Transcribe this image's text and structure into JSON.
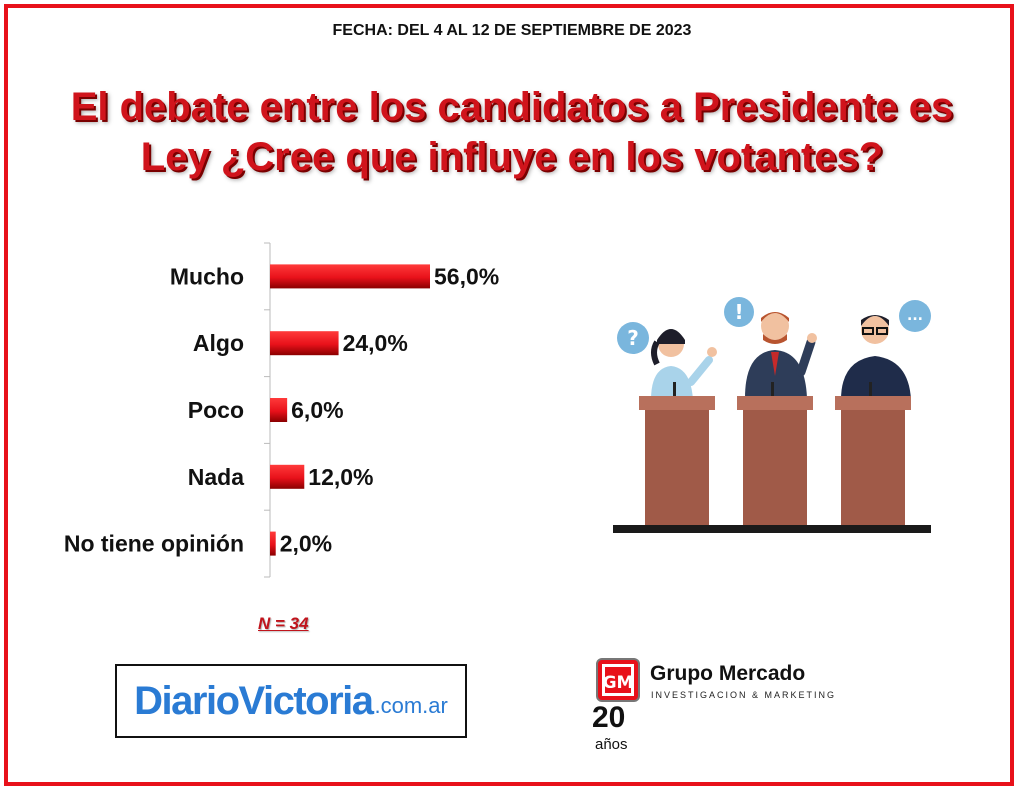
{
  "header": {
    "date": "FECHA: DEL 4 AL 12 DE SEPTIEMBRE DE 2023",
    "title_line1": "El debate entre los candidatos a Presidente es",
    "title_line2": "Ley ¿Cree que influye en los votantes?"
  },
  "chart_data": {
    "type": "bar",
    "orientation": "horizontal",
    "categories": [
      "Mucho",
      "Algo",
      "Poco",
      "Nada",
      "No tiene opinión"
    ],
    "values": [
      56.0,
      24.0,
      6.0,
      12.0,
      2.0
    ],
    "value_labels": [
      "56,0%",
      "24,0%",
      "6,0%",
      "12,0%",
      "2,0%"
    ],
    "title": "",
    "xlabel": "",
    "ylabel": "",
    "xlim": [
      0,
      100
    ],
    "bar_color": "#e8111a",
    "grid": false
  },
  "sample": {
    "label": "N = 34"
  },
  "brands": {
    "diario": {
      "name": "DiarioVictoria",
      "tld": ".com.ar"
    },
    "grupo": {
      "name": "Grupo Mercado",
      "subtitle": "INVESTIGACION & MARKETING",
      "years": "20",
      "years_label": "años"
    }
  },
  "colors": {
    "frame": "#e8111a",
    "title": "#d0141c",
    "bar": "#e8111a",
    "podium": "#a05a48"
  }
}
